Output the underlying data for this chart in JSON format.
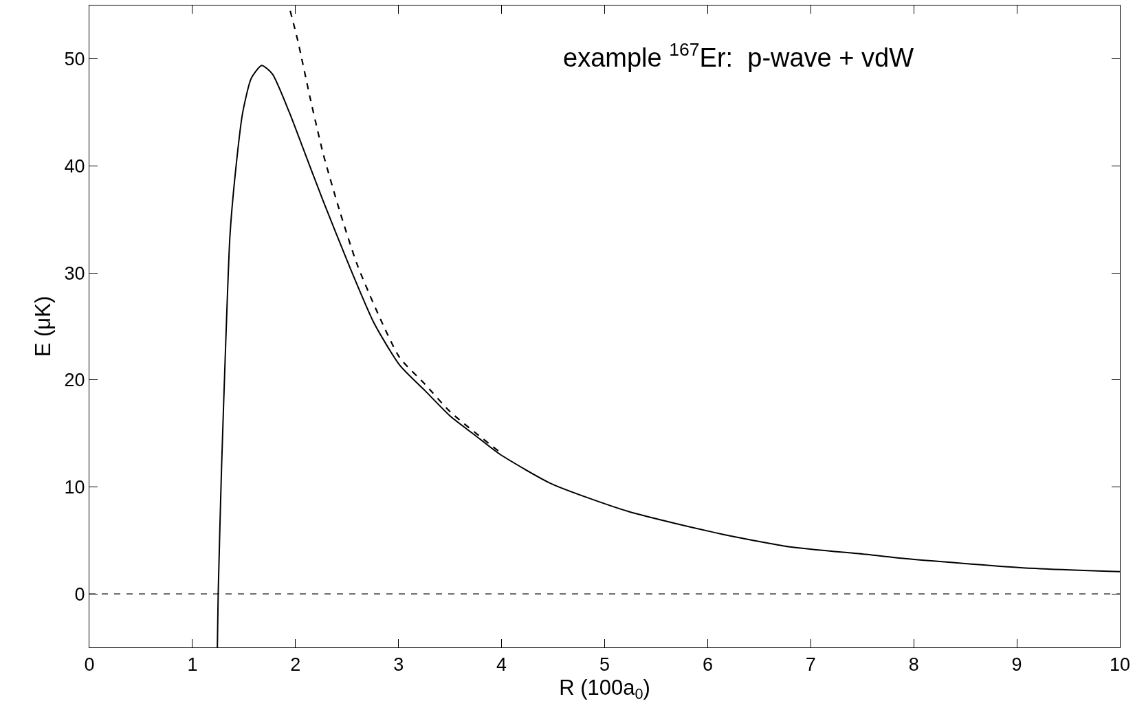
{
  "chart_data": {
    "type": "line",
    "xlabel": "R (100a$_{0}$)",
    "ylabel": "E (μK)",
    "annotations": [
      "example $^{167}$Er:  p-wave + vdW"
    ],
    "series": [
      {
        "color": "#000000",
        "line_style": "solid",
        "x": [
          1.242,
          1.25,
          1.283,
          1.324,
          1.365,
          1.427,
          1.488,
          1.571,
          1.672,
          1.776,
          1.941,
          2.064,
          2.27,
          2.516,
          2.763,
          3.01,
          3.257,
          3.504,
          3.733,
          3.977,
          4.483,
          5.232,
          6.13,
          6.797,
          7.535,
          7.916,
          9.035,
          10
        ],
        "values": [
          -5,
          0,
          11.9,
          23.7,
          33.6,
          40.3,
          45.0,
          48.2,
          49.4,
          48.6,
          45.0,
          41.9,
          36.7,
          30.8,
          25.3,
          21.4,
          19.0,
          16.6,
          14.9,
          13.1,
          10.3,
          7.7,
          5.6,
          4.4,
          3.7,
          3.3,
          2.45,
          2.08
        ]
      },
      {
        "color": "#000000",
        "line_style": "dashed",
        "x": [
          1.949,
          2.023,
          2.146,
          2.27,
          2.435,
          2.598,
          2.805,
          3.01,
          3.257,
          3.504,
          3.977
        ],
        "values": [
          54.5,
          51.7,
          46.2,
          41.1,
          35.6,
          30.8,
          26.1,
          22.1,
          19.6,
          17.0,
          13.3
        ]
      }
    ],
    "xlim": [
      0,
      10
    ],
    "xticks": [
      0,
      1,
      2,
      3,
      4,
      5,
      6,
      7,
      8,
      9,
      10
    ],
    "ylim": [
      -5,
      55
    ],
    "yticks": [
      0,
      10,
      20,
      30,
      40,
      50
    ],
    "ref_lines": [
      {
        "axis": "y",
        "value": 0,
        "color": "#000000",
        "line_style": "dashed"
      }
    ],
    "marker": "none"
  }
}
